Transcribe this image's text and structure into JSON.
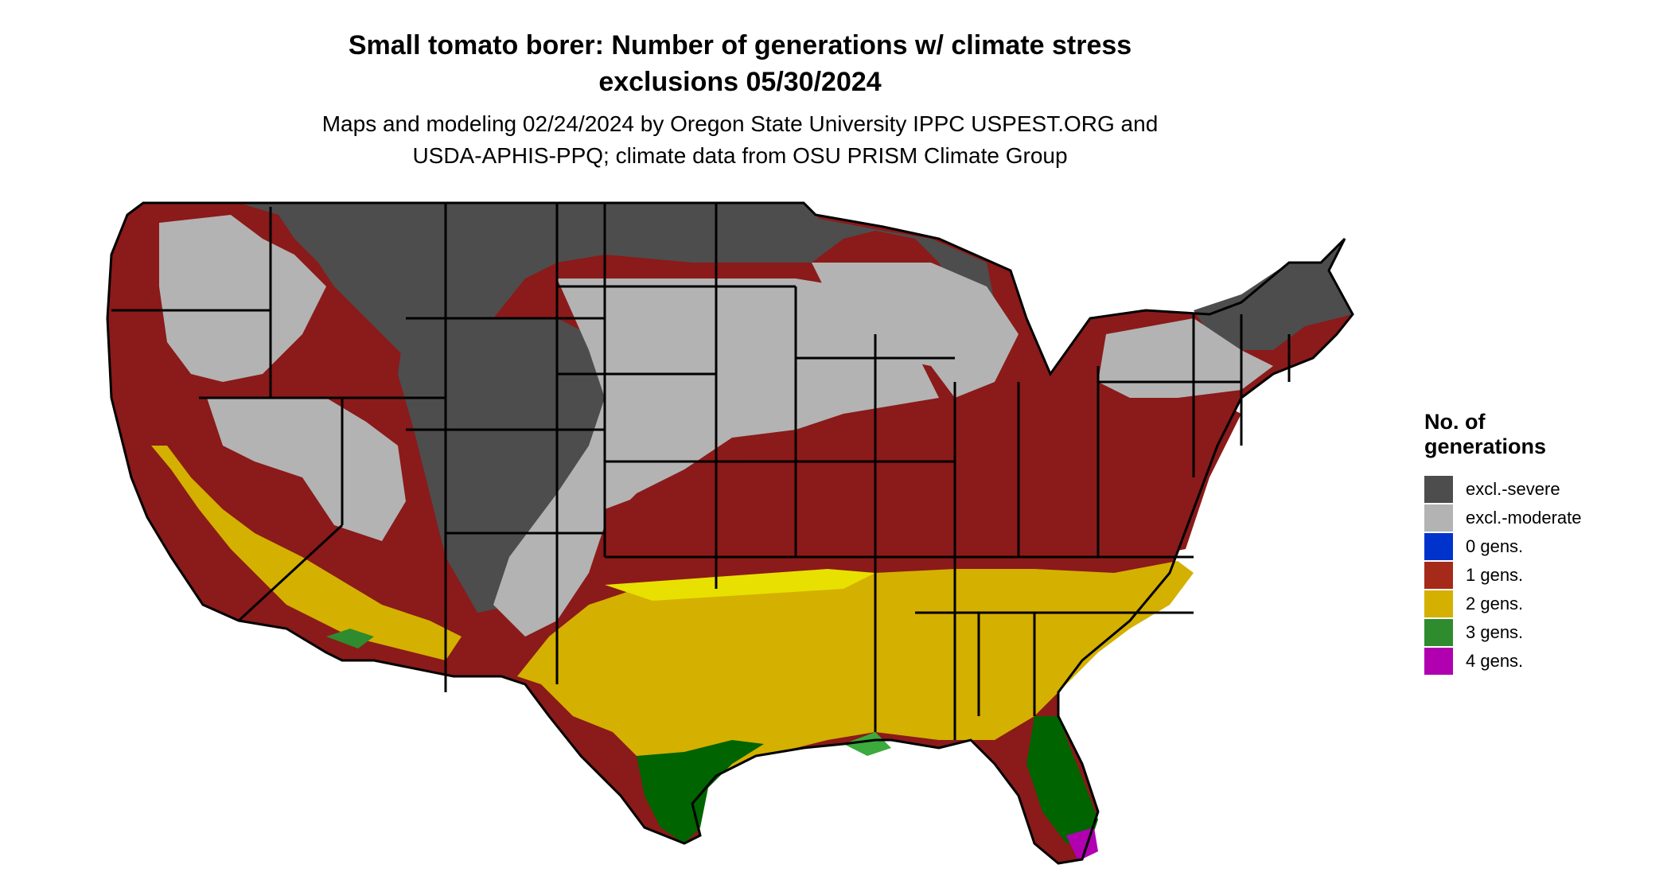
{
  "title": {
    "line1": "Small tomato borer: Number of generations w/ climate stress",
    "line2": "exclusions 05/30/2024"
  },
  "subtitle": {
    "line1": "Maps and modeling 02/24/2024 by Oregon State University IPPC USPEST.ORG and",
    "line2": "USDA-APHIS-PPQ; climate data from OSU PRISM Climate Group"
  },
  "colors": {
    "excl_severe": "#4d4d4d",
    "excl_moderate": "#b3b3b3",
    "gen0": "#0033cc",
    "gen1": "#8b1a1a",
    "gen1_legend": "#a52a1a",
    "gen2": "#d4b000",
    "gen2_bright": "#e8e000",
    "gen3": "#006400",
    "gen3_light": "#3caa3c",
    "gen4": "#b000b0",
    "state_border": "#000000"
  },
  "legend": {
    "title_line1": "No. of",
    "title_line2": "generations",
    "items": [
      {
        "label": "excl.-severe",
        "color": "#4d4d4d"
      },
      {
        "label": "excl.-moderate",
        "color": "#b3b3b3"
      },
      {
        "label": "0 gens.",
        "color": "#0033cc"
      },
      {
        "label": "1 gens.",
        "color": "#a52a1a"
      },
      {
        "label": "2 gens.",
        "color": "#d4b000"
      },
      {
        "label": "3 gens.",
        "color": "#2e8b2e"
      },
      {
        "label": "4 gens.",
        "color": "#b000b0"
      }
    ]
  }
}
